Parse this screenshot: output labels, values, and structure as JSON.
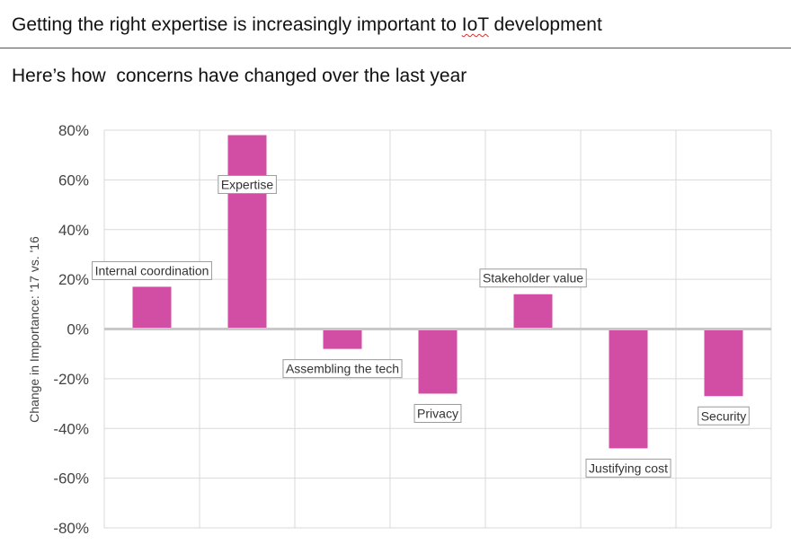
{
  "header": {
    "title_prefix": "Getting the right expertise is increasingly important to ",
    "title_iot": "IoT",
    "title_suffix": " development",
    "subtitle": "Here’s how  concerns have changed over the last year"
  },
  "chart_data": {
    "type": "bar",
    "title": "",
    "xlabel": "",
    "ylabel": "Change in Importance: '17 vs. '16",
    "ylim": [
      -80,
      80
    ],
    "yticks": [
      80,
      60,
      40,
      20,
      0,
      -20,
      -40,
      -60,
      -80
    ],
    "ytick_labels": [
      "80%",
      "60%",
      "40%",
      "20%",
      "0%",
      "-20%",
      "-40%",
      "-60%",
      "-80%"
    ],
    "grid": true,
    "bar_color": "#d24ea4",
    "categories": [
      "Internal  coordination",
      "Expertise",
      "Assembling  the tech",
      "Privacy",
      "Stakeholder  value",
      "Justifying  cost",
      "Security"
    ],
    "values": [
      17,
      78,
      -8,
      -26,
      14,
      -48,
      -27
    ]
  }
}
